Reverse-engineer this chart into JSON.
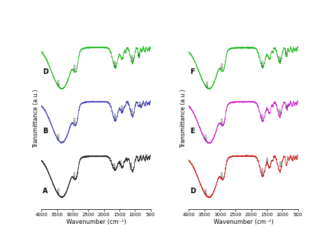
{
  "xlabel": "Wavenumber (cm⁻¹)",
  "ylabel": "Transmittance (a.u.)",
  "colors_left": {
    "A": "#222222",
    "B": "#4444bb",
    "D": "#22bb22"
  },
  "colors_right": {
    "D": "#cc2222",
    "E": "#cc22cc",
    "F": "#22bb22"
  },
  "xticks": [
    4000,
    3500,
    3000,
    2500,
    2000,
    1500,
    1000,
    500
  ],
  "background": "#ffffff",
  "lw": 0.55
}
